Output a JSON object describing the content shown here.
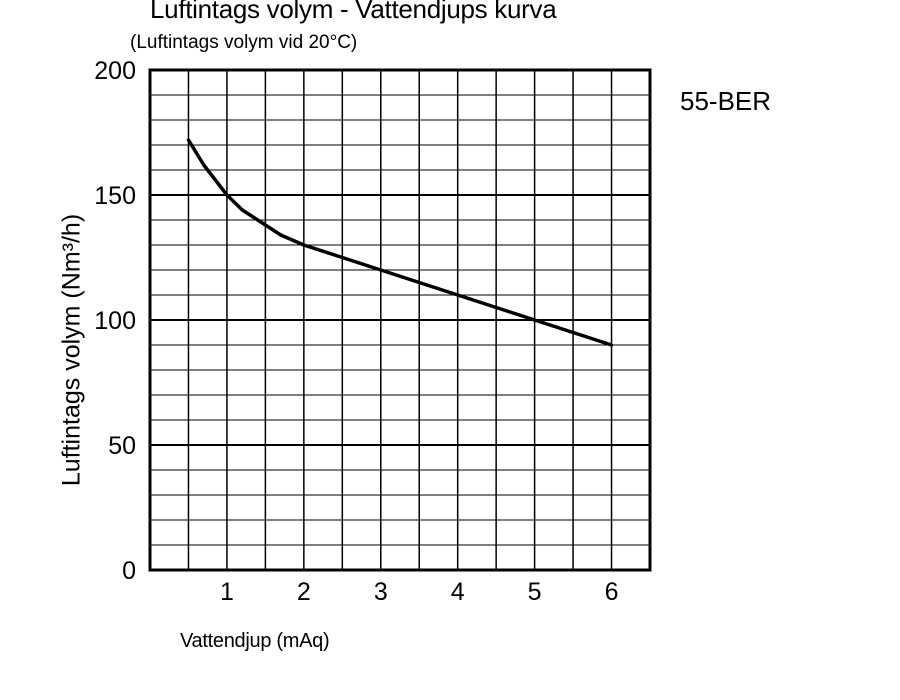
{
  "chart_data": {
    "type": "line",
    "title": "Luftintags volym - Vattendjups kurva",
    "subtitle": "(Luftintags volym vid 20°C)",
    "xlabel": "Vattendjup (mAq)",
    "ylabel": "Luftintags volym (Nm³/h)",
    "model_label": "55-BER",
    "xlim": [
      0,
      6.5
    ],
    "ylim": [
      0,
      200
    ],
    "x_ticks": [
      1,
      2,
      3,
      4,
      5,
      6
    ],
    "y_ticks": [
      0,
      50,
      100,
      150,
      200
    ],
    "grid": true,
    "series": [
      {
        "x": [
          0.5,
          0.7,
          0.9,
          1.0,
          1.2,
          1.4,
          1.5,
          1.7,
          2.0,
          2.5,
          3.0,
          3.5,
          4.0,
          4.5,
          5.0,
          5.5,
          6.0
        ],
        "y": [
          172,
          162,
          154,
          150,
          144,
          140,
          138,
          134,
          130,
          125,
          120,
          115,
          110,
          105,
          100,
          95,
          90
        ],
        "color": "#000000"
      }
    ]
  }
}
